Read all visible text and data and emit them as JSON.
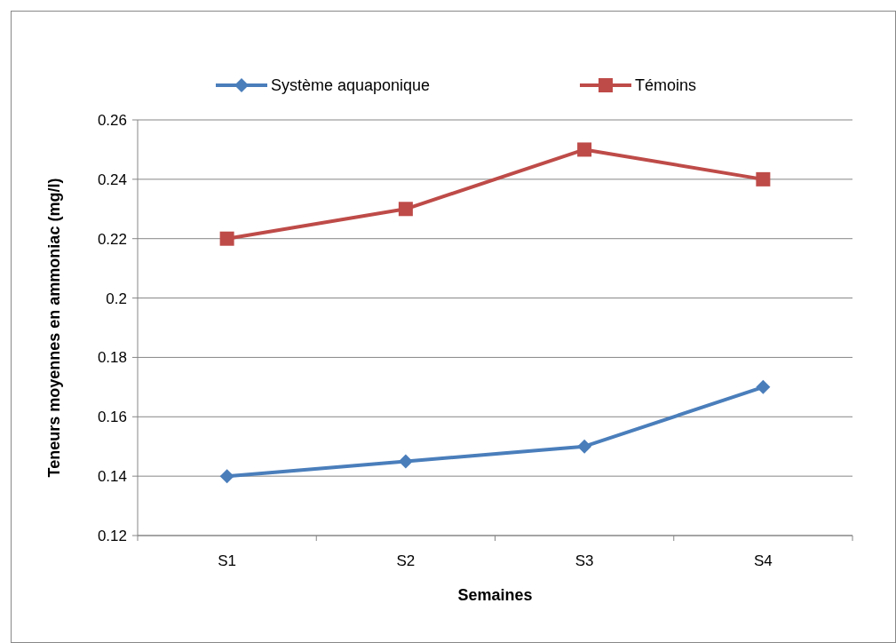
{
  "chart_data": {
    "type": "line",
    "xlabel": "Semaines",
    "ylabel": "Teneurs moyennes en ammoniac (mg/l)",
    "categories": [
      "S1",
      "S2",
      "S3",
      "S4"
    ],
    "series": [
      {
        "name": "Système aquaponique",
        "color": "#4a7ebb",
        "values": [
          0.14,
          0.145,
          0.15,
          0.17
        ],
        "marker": "diamond"
      },
      {
        "name": "Témoins",
        "color": "#be4b48",
        "values": [
          0.22,
          0.23,
          0.25,
          0.24
        ],
        "marker": "square"
      }
    ],
    "ylim": [
      0.12,
      0.26
    ],
    "yticks": [
      0.12,
      0.14,
      0.16,
      0.18,
      0.2,
      0.22,
      0.24,
      0.26
    ],
    "grid": "y",
    "legend": "top"
  }
}
